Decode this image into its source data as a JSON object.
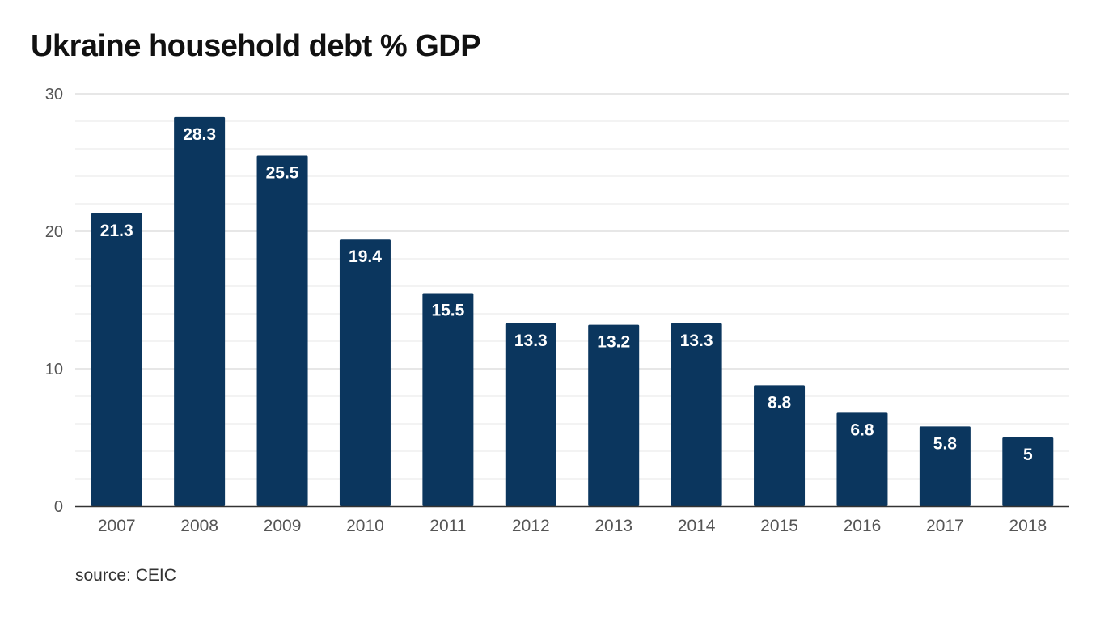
{
  "chart_data": {
    "type": "bar",
    "title": "Ukraine household debt % GDP",
    "xlabel": "",
    "ylabel": "",
    "categories": [
      "2007",
      "2008",
      "2009",
      "2010",
      "2011",
      "2012",
      "2013",
      "2014",
      "2015",
      "2016",
      "2017",
      "2018"
    ],
    "values": [
      21.3,
      28.3,
      25.5,
      19.4,
      15.5,
      13.3,
      13.2,
      13.3,
      8.8,
      6.8,
      5.8,
      5
    ],
    "value_labels": [
      "21.3",
      "28.3",
      "25.5",
      "19.4",
      "15.5",
      "13.3",
      "13.2",
      "13.3",
      "8.8",
      "6.8",
      "5.8",
      "5"
    ],
    "ylim": [
      0,
      30
    ],
    "yticks": [
      0,
      10,
      20,
      30
    ],
    "ytick_labels": [
      "0",
      "10",
      "20",
      "30"
    ],
    "grid": true,
    "minor_grid_step": 2,
    "legend": "none",
    "bar_color": "#0b365e",
    "data_label_color": "#ffffff",
    "source": "source: CEIC"
  }
}
